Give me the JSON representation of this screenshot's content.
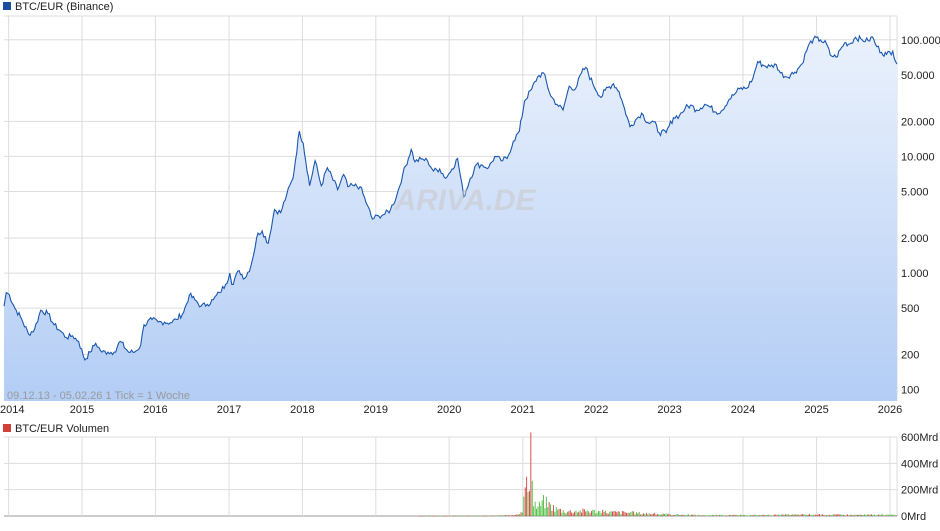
{
  "colors": {
    "line": "#1a57b0",
    "fill_top": "#eaf1fc",
    "fill_bottom": "#b3cdf5",
    "grid": "#dddddd",
    "legend_price": "#1a4fa0",
    "vol_up": "#4cbc3c",
    "vol_down": "#d2403a",
    "text": "#222222",
    "subtext": "#9a9a9a",
    "watermark": "#c8c8c8"
  },
  "chart_data": [
    {
      "type": "area",
      "title": "BTC/EUR (Binance)",
      "legend": "BTC/EUR (Binance)",
      "legend_position": "top-left",
      "grid": true,
      "y_scale": "log",
      "ylim": [
        80,
        160000
      ],
      "xlim": [
        "2013-12-09",
        "2026-02-05"
      ],
      "x_ticks": [
        "2014",
        "2015",
        "2016",
        "2017",
        "2018",
        "2019",
        "2020",
        "2021",
        "2022",
        "2023",
        "2024",
        "2025",
        "2026"
      ],
      "y_ticks": [
        {
          "value": 100,
          "label": "100"
        },
        {
          "value": 200,
          "label": "200"
        },
        {
          "value": 500,
          "label": "500"
        },
        {
          "value": 1000,
          "label": "1.000"
        },
        {
          "value": 2000,
          "label": "2.000"
        },
        {
          "value": 5000,
          "label": "5.000"
        },
        {
          "value": 10000,
          "label": "10.000"
        },
        {
          "value": 20000,
          "label": "20.000"
        },
        {
          "value": 50000,
          "label": "50.000"
        },
        {
          "value": 100000,
          "label": "100.000"
        }
      ],
      "range_note": "09.12.13 - 05.02.26   1 Tick = 1 Woche",
      "watermark": "ARIVA.DE",
      "series": [
        {
          "name": "BTC/EUR (Binance)",
          "points": [
            [
              "2013-12-09",
              520
            ],
            [
              "2013-12-20",
              680
            ],
            [
              "2014-01-05",
              650
            ],
            [
              "2014-02-01",
              500
            ],
            [
              "2014-03-01",
              420
            ],
            [
              "2014-04-10",
              300
            ],
            [
              "2014-05-10",
              330
            ],
            [
              "2014-06-10",
              480
            ],
            [
              "2014-07-15",
              450
            ],
            [
              "2014-08-15",
              360
            ],
            [
              "2014-09-15",
              320
            ],
            [
              "2014-10-15",
              280
            ],
            [
              "2014-11-15",
              290
            ],
            [
              "2014-12-15",
              260
            ],
            [
              "2015-01-15",
              180
            ],
            [
              "2015-02-10",
              210
            ],
            [
              "2015-03-10",
              250
            ],
            [
              "2015-04-10",
              210
            ],
            [
              "2015-05-10",
              210
            ],
            [
              "2015-06-10",
              210
            ],
            [
              "2015-07-10",
              260
            ],
            [
              "2015-08-20",
              210
            ],
            [
              "2015-09-20",
              210
            ],
            [
              "2015-10-20",
              240
            ],
            [
              "2015-11-05",
              360
            ],
            [
              "2015-12-15",
              400
            ],
            [
              "2016-01-15",
              380
            ],
            [
              "2016-02-15",
              380
            ],
            [
              "2016-03-15",
              375
            ],
            [
              "2016-04-15",
              400
            ],
            [
              "2016-05-20",
              460
            ],
            [
              "2016-06-18",
              650
            ],
            [
              "2016-07-15",
              590
            ],
            [
              "2016-08-15",
              520
            ],
            [
              "2016-09-15",
              540
            ],
            [
              "2016-10-15",
              590
            ],
            [
              "2016-11-15",
              680
            ],
            [
              "2016-12-15",
              800
            ],
            [
              "2017-01-05",
              1000
            ],
            [
              "2017-01-15",
              800
            ],
            [
              "2017-02-20",
              1050
            ],
            [
              "2017-03-20",
              900
            ],
            [
              "2017-04-20",
              1150
            ],
            [
              "2017-05-25",
              2200
            ],
            [
              "2017-06-15",
              2300
            ],
            [
              "2017-07-15",
              1800
            ],
            [
              "2017-08-15",
              3500
            ],
            [
              "2017-09-15",
              3300
            ],
            [
              "2017-10-15",
              4700
            ],
            [
              "2017-11-15",
              6500
            ],
            [
              "2017-12-17",
              16500
            ],
            [
              "2018-01-05",
              13000
            ],
            [
              "2018-02-06",
              5600
            ],
            [
              "2018-03-05",
              9200
            ],
            [
              "2018-04-05",
              5600
            ],
            [
              "2018-05-05",
              8000
            ],
            [
              "2018-06-25",
              5200
            ],
            [
              "2018-07-25",
              7000
            ],
            [
              "2018-08-15",
              5500
            ],
            [
              "2018-09-15",
              5600
            ],
            [
              "2018-10-15",
              5500
            ],
            [
              "2018-11-20",
              3800
            ],
            [
              "2018-12-15",
              2900
            ],
            [
              "2019-01-15",
              3100
            ],
            [
              "2019-02-15",
              3200
            ],
            [
              "2019-03-15",
              3500
            ],
            [
              "2019-04-15",
              4600
            ],
            [
              "2019-05-15",
              7000
            ],
            [
              "2019-06-26",
              11500
            ],
            [
              "2019-07-15",
              9000
            ],
            [
              "2019-08-15",
              9500
            ],
            [
              "2019-09-15",
              9200
            ],
            [
              "2019-10-15",
              7500
            ],
            [
              "2019-11-15",
              7800
            ],
            [
              "2019-12-15",
              6500
            ],
            [
              "2020-01-15",
              7800
            ],
            [
              "2020-02-12",
              9600
            ],
            [
              "2020-03-13",
              4500
            ],
            [
              "2020-04-15",
              6500
            ],
            [
              "2020-05-15",
              8500
            ],
            [
              "2020-06-15",
              8400
            ],
            [
              "2020-07-15",
              8000
            ],
            [
              "2020-08-15",
              10000
            ],
            [
              "2020-09-15",
              9200
            ],
            [
              "2020-10-15",
              9600
            ],
            [
              "2020-11-15",
              13500
            ],
            [
              "2020-12-15",
              16500
            ],
            [
              "2021-01-10",
              30000
            ],
            [
              "2021-02-15",
              38000
            ],
            [
              "2021-03-15",
              48000
            ],
            [
              "2021-04-14",
              52000
            ],
            [
              "2021-05-20",
              33000
            ],
            [
              "2021-06-20",
              28000
            ],
            [
              "2021-07-20",
              25000
            ],
            [
              "2021-08-20",
              40000
            ],
            [
              "2021-09-20",
              38000
            ],
            [
              "2021-10-20",
              52000
            ],
            [
              "2021-11-10",
              58000
            ],
            [
              "2021-12-15",
              42000
            ],
            [
              "2022-01-25",
              32000
            ],
            [
              "2022-02-15",
              37000
            ],
            [
              "2022-03-28",
              42000
            ],
            [
              "2022-04-25",
              36000
            ],
            [
              "2022-05-15",
              28000
            ],
            [
              "2022-06-18",
              18000
            ],
            [
              "2022-07-15",
              20500
            ],
            [
              "2022-08-15",
              23500
            ],
            [
              "2022-09-15",
              19500
            ],
            [
              "2022-10-15",
              19800
            ],
            [
              "2022-11-10",
              16000
            ],
            [
              "2022-12-15",
              16000
            ],
            [
              "2023-01-20",
              21500
            ],
            [
              "2023-02-20",
              22500
            ],
            [
              "2023-03-20",
              26000
            ],
            [
              "2023-04-15",
              27500
            ],
            [
              "2023-05-15",
              25000
            ],
            [
              "2023-06-25",
              28000
            ],
            [
              "2023-07-15",
              27000
            ],
            [
              "2023-08-20",
              24000
            ],
            [
              "2023-09-15",
              24500
            ],
            [
              "2023-10-25",
              31000
            ],
            [
              "2023-11-15",
              33500
            ],
            [
              "2023-12-15",
              38000
            ],
            [
              "2024-01-20",
              38500
            ],
            [
              "2024-02-20",
              47000
            ],
            [
              "2024-03-14",
              65000
            ],
            [
              "2024-04-15",
              60000
            ],
            [
              "2024-05-15",
              59000
            ],
            [
              "2024-06-15",
              61000
            ],
            [
              "2024-07-05",
              52000
            ],
            [
              "2024-08-05",
              48000
            ],
            [
              "2024-09-15",
              53000
            ],
            [
              "2024-10-20",
              62000
            ],
            [
              "2024-11-20",
              88000
            ],
            [
              "2024-12-17",
              102000
            ],
            [
              "2025-01-20",
              100000
            ],
            [
              "2025-02-20",
              92000
            ],
            [
              "2025-03-10",
              74000
            ],
            [
              "2025-04-08",
              71000
            ],
            [
              "2025-05-20",
              94000
            ],
            [
              "2025-06-15",
              92000
            ],
            [
              "2025-07-14",
              105000
            ],
            [
              "2025-08-15",
              100000
            ],
            [
              "2025-09-15",
              98000
            ],
            [
              "2025-10-06",
              106000
            ],
            [
              "2025-10-20",
              92000
            ],
            [
              "2025-11-20",
              78000
            ],
            [
              "2025-12-15",
              75000
            ],
            [
              "2026-01-15",
              80000
            ],
            [
              "2026-02-05",
              62000
            ]
          ]
        }
      ]
    },
    {
      "type": "bar",
      "title": "BTC/EUR Volumen",
      "legend": "BTC/EUR Volumen",
      "legend_position": "top-left",
      "grid": true,
      "unit": "Mrd",
      "ylim": [
        0,
        600
      ],
      "xlim": [
        "2013-12-09",
        "2026-02-05"
      ],
      "y_ticks": [
        {
          "value": 0,
          "label": "0Mrd"
        },
        {
          "value": 200,
          "label": "200Mrd"
        },
        {
          "value": 400,
          "label": "400Mrd"
        },
        {
          "value": 600,
          "label": "600Mrd"
        }
      ],
      "volume_profile": [
        [
          "2013-12-09",
          0
        ],
        [
          "2019-08-01",
          0
        ],
        [
          "2019-09-01",
          1
        ],
        [
          "2020-01-01",
          2
        ],
        [
          "2020-06-01",
          3
        ],
        [
          "2020-10-01",
          5
        ],
        [
          "2020-12-01",
          12
        ],
        [
          "2021-01-01",
          60
        ],
        [
          "2021-01-15",
          380
        ],
        [
          "2021-01-25",
          150
        ],
        [
          "2021-02-08",
          470
        ],
        [
          "2021-02-20",
          140
        ],
        [
          "2021-03-10",
          70
        ],
        [
          "2021-04-15",
          130
        ],
        [
          "2021-05-15",
          90
        ],
        [
          "2021-06-15",
          60
        ],
        [
          "2021-08-01",
          40
        ],
        [
          "2021-10-01",
          45
        ],
        [
          "2021-12-01",
          45
        ],
        [
          "2022-02-01",
          35
        ],
        [
          "2022-06-01",
          30
        ],
        [
          "2022-12-01",
          15
        ],
        [
          "2023-06-01",
          7
        ],
        [
          "2024-01-01",
          7
        ],
        [
          "2024-12-01",
          12
        ],
        [
          "2025-06-01",
          10
        ],
        [
          "2026-02-05",
          10
        ]
      ]
    }
  ]
}
